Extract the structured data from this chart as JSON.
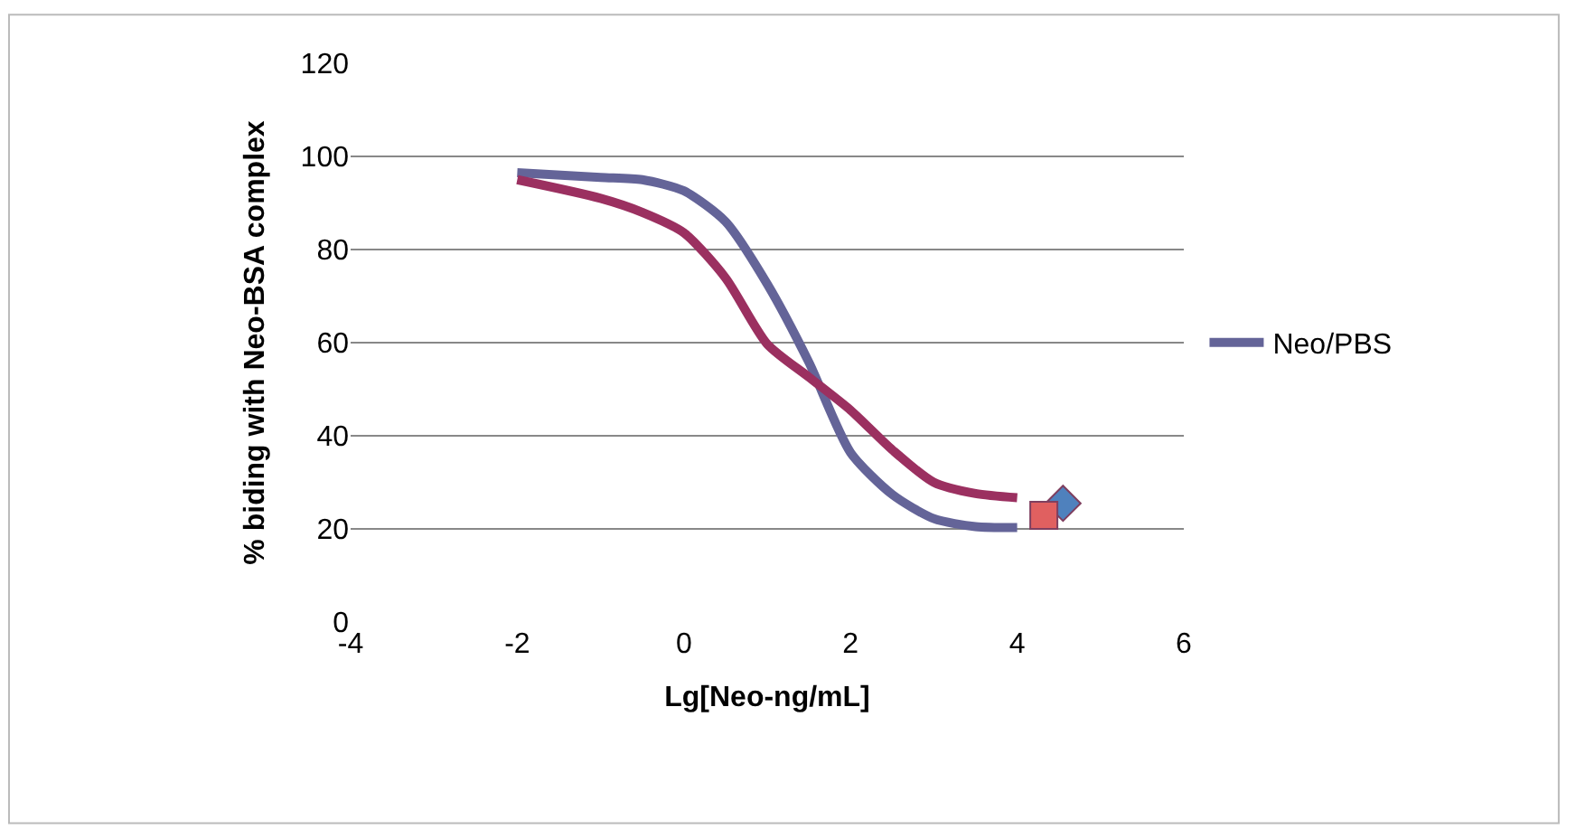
{
  "chart_data": {
    "type": "line",
    "xlabel": "Lg[Neo-ng/mL]",
    "ylabel": "% biding with Neo-BSA complex",
    "xlim": [
      -4,
      6
    ],
    "xticks": [
      -4,
      -2,
      0,
      2,
      4,
      6
    ],
    "ylim": [
      0,
      120
    ],
    "yticks": [
      0,
      20,
      40,
      60,
      80,
      100,
      120
    ],
    "grid": "y",
    "legend": "right",
    "marker": "none",
    "line_style": "solid",
    "series": [
      {
        "name": "Neo/PBS",
        "color": "#646498",
        "x": [
          -2,
          -1,
          -0.5,
          0,
          0.5,
          1,
          1.5,
          2,
          2.5,
          3,
          3.5,
          4
        ],
        "values": [
          96.5,
          95.5,
          95,
          92.6,
          86,
          72.6,
          55.8,
          36.4,
          27.4,
          22.2,
          20.5,
          20.3
        ]
      },
      {
        "color": "#9b3060",
        "x": [
          -2,
          -1,
          -0.5,
          0,
          0.5,
          1,
          1.5,
          2,
          2.5,
          3,
          3.5,
          4
        ],
        "values": [
          95,
          91,
          88,
          83.6,
          73.9,
          59.7,
          52.6,
          45.5,
          37,
          30,
          27.6,
          26.7
        ]
      },
      {
        "type": "scatter",
        "marker": "diamond",
        "color": "#4f81bd",
        "x": [
          4.55
        ],
        "values": [
          25.5
        ]
      },
      {
        "type": "scatter",
        "marker": "square",
        "color": "#e06060",
        "x": [
          4.32
        ],
        "values": [
          22.9
        ]
      }
    ]
  }
}
